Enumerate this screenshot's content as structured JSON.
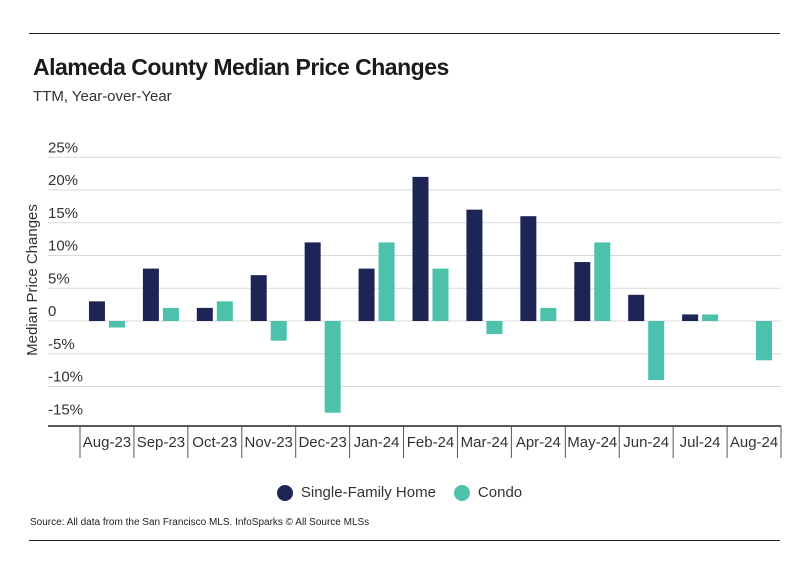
{
  "title": "Alameda County Median Price Changes",
  "subtitle": "TTM, Year-over-Year",
  "source": "Source:  All data from the San Francisco MLS. InfoSparks © All Source MLSs",
  "colors": {
    "single_family": "#1c2556",
    "condo": "#4cc2ad"
  },
  "chart_data": {
    "type": "bar",
    "title": "Alameda County Median Price Changes",
    "subtitle": "TTM, Year-over-Year",
    "xlabel": "",
    "ylabel": "Median Price Changes",
    "ylim": [
      -15,
      25
    ],
    "yticks": [
      25,
      20,
      15,
      10,
      5,
      0,
      -5,
      -10,
      -15
    ],
    "ytick_labels": [
      "25%",
      "20%",
      "15%",
      "10%",
      "5%",
      "0",
      "-5%",
      "-10%",
      "-15%"
    ],
    "categories": [
      "Aug-23",
      "Sep-23",
      "Oct-23",
      "Nov-23",
      "Dec-23",
      "Jan-24",
      "Feb-24",
      "Mar-24",
      "Apr-24",
      "May-24",
      "Jun-24",
      "Jul-24",
      "Aug-24"
    ],
    "series": [
      {
        "name": "Single-Family Home",
        "values": [
          3,
          8,
          2,
          7,
          12,
          8,
          22,
          17,
          16,
          9,
          4,
          1,
          0
        ]
      },
      {
        "name": "Condo",
        "values": [
          -1,
          2,
          3,
          -3,
          -14,
          12,
          8,
          -2,
          2,
          12,
          -9,
          1,
          -6
        ]
      }
    ],
    "grid": true,
    "legend": "bottom-center"
  }
}
